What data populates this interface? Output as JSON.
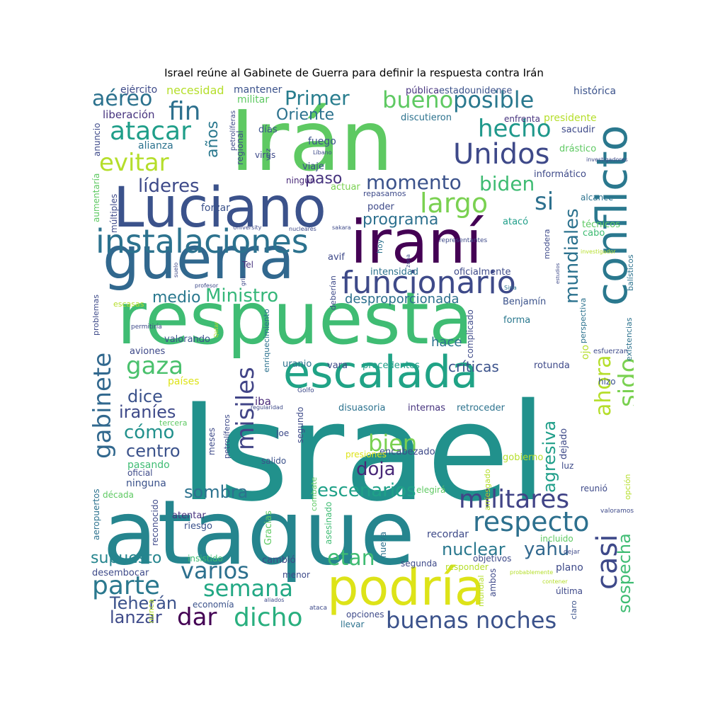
{
  "title": "Israel reúne al Gabinete de Guerra para definir la respuesta contra Irán",
  "words": [
    {
      "text": "Israel",
      "color": "#21918c"
    },
    {
      "text": "ataque",
      "color": "#25858e"
    },
    {
      "text": "respuesta",
      "color": "#3fbc73"
    },
    {
      "text": "Irán",
      "color": "#5ec962"
    },
    {
      "text": "guerra",
      "color": "#31688e"
    },
    {
      "text": "Luciano",
      "color": "#3b528b"
    },
    {
      "text": "iraní",
      "color": "#440154"
    },
    {
      "text": "podría",
      "color": "#dde318"
    },
    {
      "text": "conflicto",
      "color": "#2a788e"
    },
    {
      "text": "escalada",
      "color": "#20a386"
    },
    {
      "text": "instalaciones",
      "color": "#2c728e"
    },
    {
      "text": "funcionario",
      "color": "#3e4a89"
    },
    {
      "text": "Unidos",
      "color": "#3e4989"
    },
    {
      "text": "militares",
      "color": "#414487"
    },
    {
      "text": "respecto",
      "color": "#2d708e"
    },
    {
      "text": "gabinete",
      "color": "#31688e"
    },
    {
      "text": "buenas noches",
      "color": "#3b528b"
    },
    {
      "text": "dicho",
      "color": "#29af7f"
    },
    {
      "text": "atacar",
      "color": "#1f9e89"
    },
    {
      "text": "evitar",
      "color": "#b5de2b"
    },
    {
      "text": "hecho",
      "color": "#1f988b"
    },
    {
      "text": "bueno",
      "color": "#5ec962"
    },
    {
      "text": "posible",
      "color": "#2a788e"
    },
    {
      "text": "fin",
      "color": "#2d708e"
    },
    {
      "text": "aéreo",
      "color": "#2c728e"
    },
    {
      "text": "Primer",
      "color": "#287d8e"
    },
    {
      "text": "largo",
      "color": "#7ad151"
    },
    {
      "text": "líderes",
      "color": "#3e4a89"
    },
    {
      "text": "momento",
      "color": "#3b528b"
    },
    {
      "text": "biden",
      "color": "#3fbc73"
    },
    {
      "text": "si",
      "color": "#2d708e"
    },
    {
      "text": "mundiales",
      "color": "#2c728e"
    },
    {
      "text": "gaza",
      "color": "#4ac16d"
    },
    {
      "text": "misiles",
      "color": "#414487"
    },
    {
      "text": "Ministro",
      "color": "#35b779"
    },
    {
      "text": "sido",
      "color": "#7ad151"
    },
    {
      "text": "ahora",
      "color": "#b5de2b"
    },
    {
      "text": "casi",
      "color": "#3e4989"
    },
    {
      "text": "parte",
      "color": "#2a788e"
    },
    {
      "text": "semana",
      "color": "#22a884"
    },
    {
      "text": "varios",
      "color": "#2d708e"
    },
    {
      "text": "dar",
      "color": "#440154"
    },
    {
      "text": "etan",
      "color": "#3fbc73"
    },
    {
      "text": "yahu",
      "color": "#31688e"
    },
    {
      "text": "nuclear",
      "color": "#2a788e"
    },
    {
      "text": "agresiva",
      "color": "#1f9e89"
    },
    {
      "text": "sospecha",
      "color": "#3fbc73"
    },
    {
      "text": "Teherán",
      "color": "#3b528b"
    },
    {
      "text": "lanzar",
      "color": "#3e4a89"
    },
    {
      "text": "bien",
      "color": "#7ad151"
    },
    {
      "text": "doja",
      "color": "#482878"
    },
    {
      "text": "escenarios",
      "color": "#1fa188"
    },
    {
      "text": "sombra",
      "color": "#2c728e"
    },
    {
      "text": "cómo",
      "color": "#21918c"
    },
    {
      "text": "centro",
      "color": "#3b528b"
    },
    {
      "text": "iraníes",
      "color": "#3e4989"
    },
    {
      "text": "dice",
      "color": "#3b528b"
    },
    {
      "text": "medio",
      "color": "#2a788e"
    },
    {
      "text": "Oriente",
      "color": "#2c728e"
    },
    {
      "text": "programa",
      "color": "#2d708e"
    },
    {
      "text": "paso",
      "color": "#46337e"
    },
    {
      "text": "años",
      "color": "#2a788e"
    },
    {
      "text": "supuesto",
      "color": "#25858e"
    },
    {
      "text": "desproporcionada",
      "color": "#2d708e"
    },
    {
      "text": "críticas",
      "color": "#3b528b"
    },
    {
      "text": "hace",
      "color": "#2c728e"
    },
    {
      "text": "ejército",
      "color": "#3e4a89"
    },
    {
      "text": "necesidad",
      "color": "#b5de2b"
    },
    {
      "text": "mantener",
      "color": "#3b528b"
    },
    {
      "text": "militar",
      "color": "#5ec962"
    },
    {
      "text": "pública",
      "color": "#46337e"
    },
    {
      "text": "estadounidense",
      "color": "#3b528b"
    },
    {
      "text": "histórica",
      "color": "#3b528b"
    },
    {
      "text": "liberación",
      "color": "#46337e"
    },
    {
      "text": "discutieron",
      "color": "#2c728e"
    },
    {
      "text": "presidente",
      "color": "#b5de2b"
    },
    {
      "text": "enfrenta",
      "color": "#46337e"
    },
    {
      "text": "sacudir",
      "color": "#3e4a89"
    },
    {
      "text": "drástico",
      "color": "#5ec962"
    },
    {
      "text": "alianza",
      "color": "#2c728e"
    },
    {
      "text": "días",
      "color": "#3b528b"
    },
    {
      "text": "fuego",
      "color": "#3b528b"
    },
    {
      "text": "viaje",
      "color": "#3b528b"
    },
    {
      "text": "ningún",
      "color": "#482878"
    },
    {
      "text": "actuar",
      "color": "#7ad151"
    },
    {
      "text": "poder",
      "color": "#3e4a89"
    },
    {
      "text": "forzar",
      "color": "#3b528b"
    },
    {
      "text": "informático",
      "color": "#3e4a89"
    },
    {
      "text": "alcance",
      "color": "#2c728e"
    },
    {
      "text": "técnicos",
      "color": "#5ec962"
    },
    {
      "text": "cabo",
      "color": "#3fbc73"
    },
    {
      "text": "atacó",
      "color": "#1f9e89"
    },
    {
      "text": "Tel",
      "color": "#46337e"
    },
    {
      "text": "avif",
      "color": "#3e4989"
    },
    {
      "text": "intensidad",
      "color": "#2c728e"
    },
    {
      "text": "oficialmente",
      "color": "#3e4a89"
    },
    {
      "text": "Benjamín",
      "color": "#3b528b"
    },
    {
      "text": "forma",
      "color": "#2a788e"
    },
    {
      "text": "valorando",
      "color": "#3b528b"
    },
    {
      "text": "aviones",
      "color": "#3e4989"
    },
    {
      "text": "vara",
      "color": "#3e4a89"
    },
    {
      "text": "precedentes",
      "color": "#1f9e89"
    },
    {
      "text": "rotunda",
      "color": "#3e4989"
    },
    {
      "text": "uranio",
      "color": "#2c728e"
    },
    {
      "text": "países",
      "color": "#dde318"
    },
    {
      "text": "iba",
      "color": "#482878"
    },
    {
      "text": "disuasoria",
      "color": "#2c728e"
    },
    {
      "text": "internas",
      "color": "#46337e"
    },
    {
      "text": "retroceder",
      "color": "#2c728e"
    },
    {
      "text": "hizo",
      "color": "#3b528b"
    },
    {
      "text": "encabezado",
      "color": "#3e4a89"
    },
    {
      "text": "gobierno",
      "color": "#b5de2b"
    },
    {
      "text": "presiones",
      "color": "#dde318"
    },
    {
      "text": "salido",
      "color": "#3b528b"
    },
    {
      "text": "Joe",
      "color": "#3e4a89"
    },
    {
      "text": "pasando",
      "color": "#3fbc73"
    },
    {
      "text": "oficial",
      "color": "#3e4a89"
    },
    {
      "text": "ninguna",
      "color": "#3b528b"
    },
    {
      "text": "década",
      "color": "#5ec962"
    },
    {
      "text": "atentar",
      "color": "#46337e"
    },
    {
      "text": "riesgo",
      "color": "#3b528b"
    },
    {
      "text": "elegirá",
      "color": "#5ec962"
    },
    {
      "text": "recordar",
      "color": "#3e4a89"
    },
    {
      "text": "objetivos",
      "color": "#3e4a89"
    },
    {
      "text": "incluido",
      "color": "#5ec962"
    },
    {
      "text": "insistido",
      "color": "#3fbc73"
    },
    {
      "text": "cambió",
      "color": "#3e4a89"
    },
    {
      "text": "segunda",
      "color": "#3e4a89"
    },
    {
      "text": "responder",
      "color": "#b5de2b"
    },
    {
      "text": "plano",
      "color": "#3e4a89"
    },
    {
      "text": "desembocar",
      "color": "#3e4a89"
    },
    {
      "text": "menor",
      "color": "#3e4a89"
    },
    {
      "text": "economía",
      "color": "#3b528b"
    },
    {
      "text": "opciones",
      "color": "#3e4a89"
    },
    {
      "text": "llevar",
      "color": "#2c728e"
    },
    {
      "text": "última",
      "color": "#3e4989"
    },
    {
      "text": "luz",
      "color": "#3e4a89"
    },
    {
      "text": "reunió",
      "color": "#3e4a89"
    },
    {
      "text": "claro",
      "color": "#3b528b"
    },
    {
      "text": "ambos",
      "color": "#3e4989"
    },
    {
      "text": "mundial",
      "color": "#b5de2b"
    },
    {
      "text": "nueva",
      "color": "#2c728e"
    },
    {
      "text": "asesinado",
      "color": "#3fbc73"
    },
    {
      "text": "combate",
      "color": "#5ec962"
    },
    {
      "text": "Gracias",
      "color": "#5ec962"
    },
    {
      "text": "reconocido",
      "color": "#3e4989"
    },
    {
      "text": "aeropuertos",
      "color": "#2c728e"
    },
    {
      "text": "segundo",
      "color": "#3e4a89"
    },
    {
      "text": "arriesgado",
      "color": "#b5de2b"
    },
    {
      "text": "dejado",
      "color": "#3e4a89"
    },
    {
      "text": "opción",
      "color": "#b5de2b"
    },
    {
      "text": "meses",
      "color": "#3e4a89"
    },
    {
      "text": "petrolíferos",
      "color": "#3e4a89"
    },
    {
      "text": "tercera",
      "color": "#5ec962"
    },
    {
      "text": "Golfo",
      "color": "#3e4a89"
    },
    {
      "text": "regularidad",
      "color": "#3e4a89"
    },
    {
      "text": "enriquecimiento",
      "color": "#2c728e"
    },
    {
      "text": "complicado",
      "color": "#3e4a89"
    },
    {
      "text": "perspectiva",
      "color": "#2c728e"
    },
    {
      "text": "ojo",
      "color": "#b5de2b"
    },
    {
      "text": "esfuerzan",
      "color": "#3e4a89"
    },
    {
      "text": "existencias",
      "color": "#2c728e"
    },
    {
      "text": "problemas",
      "color": "#3e4a89"
    },
    {
      "text": "escasas",
      "color": "#b5de2b"
    },
    {
      "text": "permitiría",
      "color": "#3e4a89"
    },
    {
      "text": "Qatar",
      "color": "#b5de2b"
    },
    {
      "text": "profesor",
      "color": "#3e4a89"
    },
    {
      "text": "deberían",
      "color": "#3e4a89"
    },
    {
      "text": "hoy",
      "color": "#2c728e"
    },
    {
      "text": "zona",
      "color": "#3e4a89"
    },
    {
      "text": "Siria",
      "color": "#2c728e"
    },
    {
      "text": "representantes",
      "color": "#3e4a89"
    },
    {
      "text": "modera",
      "color": "#3e4a89"
    },
    {
      "text": "estudios",
      "color": "#3e4a89"
    },
    {
      "text": "investigador",
      "color": "#b5de2b"
    },
    {
      "text": "balísticos",
      "color": "#2c728e"
    },
    {
      "text": "University",
      "color": "#3e4a89"
    },
    {
      "text": "nucleares",
      "color": "#3e4a89"
    },
    {
      "text": "sakara",
      "color": "#3e4a89"
    },
    {
      "text": "suelo",
      "color": "#3e4a89"
    },
    {
      "text": "gris",
      "color": "#3e4a89"
    },
    {
      "text": "virus",
      "color": "#3e4a89"
    },
    {
      "text": "vez",
      "color": "#3e4a89"
    },
    {
      "text": "regional",
      "color": "#3e4a89"
    },
    {
      "text": "petrolíferas",
      "color": "#3e4a89"
    },
    {
      "text": "anuncio",
      "color": "#3e4a89"
    },
    {
      "text": "aumentaría",
      "color": "#5ec962"
    },
    {
      "text": "múltiples",
      "color": "#3e4a89"
    },
    {
      "text": "Líbano",
      "color": "#3e4a89"
    },
    {
      "text": "repasamos",
      "color": "#3e4a89"
    },
    {
      "text": "represalias",
      "color": "#b5de2b"
    },
    {
      "text": "investigadores",
      "color": "#3e4a89"
    },
    {
      "text": "dejar",
      "color": "#3e4a89"
    },
    {
      "text": "valoramos",
      "color": "#3e4a89"
    },
    {
      "text": "probablemente",
      "color": "#b5de2b"
    },
    {
      "text": "contener",
      "color": "#b5de2b"
    },
    {
      "text": "aliados",
      "color": "#3e4a89"
    },
    {
      "text": "ataca",
      "color": "#3e4a89"
    },
    {
      "text": "nunca",
      "color": "#b5de2b"
    }
  ]
}
